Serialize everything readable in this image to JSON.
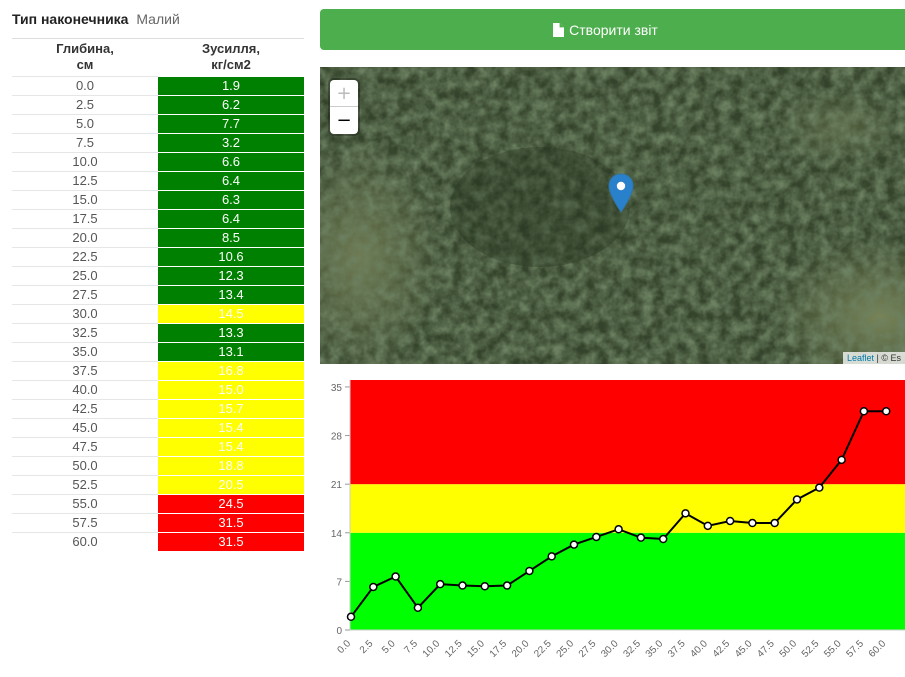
{
  "tip": {
    "label": "Тип наконечника",
    "value": "Малий"
  },
  "table": {
    "headers": {
      "depth": "Глибина,\nсм",
      "force": "Зусилля,\nкг/см2"
    },
    "rows": [
      {
        "depth": "0.0",
        "force": "1.9",
        "level": "green"
      },
      {
        "depth": "2.5",
        "force": "6.2",
        "level": "green"
      },
      {
        "depth": "5.0",
        "force": "7.7",
        "level": "green"
      },
      {
        "depth": "7.5",
        "force": "3.2",
        "level": "green"
      },
      {
        "depth": "10.0",
        "force": "6.6",
        "level": "green"
      },
      {
        "depth": "12.5",
        "force": "6.4",
        "level": "green"
      },
      {
        "depth": "15.0",
        "force": "6.3",
        "level": "green"
      },
      {
        "depth": "17.5",
        "force": "6.4",
        "level": "green"
      },
      {
        "depth": "20.0",
        "force": "8.5",
        "level": "green"
      },
      {
        "depth": "22.5",
        "force": "10.6",
        "level": "green"
      },
      {
        "depth": "25.0",
        "force": "12.3",
        "level": "green"
      },
      {
        "depth": "27.5",
        "force": "13.4",
        "level": "green"
      },
      {
        "depth": "30.0",
        "force": "14.5",
        "level": "yellow"
      },
      {
        "depth": "32.5",
        "force": "13.3",
        "level": "green"
      },
      {
        "depth": "35.0",
        "force": "13.1",
        "level": "green"
      },
      {
        "depth": "37.5",
        "force": "16.8",
        "level": "yellow"
      },
      {
        "depth": "40.0",
        "force": "15.0",
        "level": "yellow"
      },
      {
        "depth": "42.5",
        "force": "15.7",
        "level": "yellow"
      },
      {
        "depth": "45.0",
        "force": "15.4",
        "level": "yellow"
      },
      {
        "depth": "47.5",
        "force": "15.4",
        "level": "yellow"
      },
      {
        "depth": "50.0",
        "force": "18.8",
        "level": "yellow"
      },
      {
        "depth": "52.5",
        "force": "20.5",
        "level": "yellow"
      },
      {
        "depth": "55.0",
        "force": "24.5",
        "level": "red"
      },
      {
        "depth": "57.5",
        "force": "31.5",
        "level": "red"
      },
      {
        "depth": "60.0",
        "force": "31.5",
        "level": "red"
      }
    ]
  },
  "report_button": {
    "label": "Створити звіт",
    "icon": "document-icon"
  },
  "map": {
    "zoom_in": "+",
    "zoom_out": "−",
    "marker_icon": "map-marker-icon",
    "attribution_link": "Leaflet",
    "attribution_rest": " | © Es"
  },
  "colors": {
    "green": "#008000",
    "yellow": "#ffff00",
    "red": "#ff0000",
    "chart_green": "#00ff00",
    "button": "#4cae4c",
    "marker": "#2a81cb"
  },
  "chart_data": {
    "type": "line",
    "x": [
      "0.0",
      "2.5",
      "5.0",
      "7.5",
      "10.0",
      "12.5",
      "15.0",
      "17.5",
      "20.0",
      "22.5",
      "25.0",
      "27.5",
      "30.0",
      "32.5",
      "35.0",
      "37.5",
      "40.0",
      "42.5",
      "45.0",
      "47.5",
      "50.0",
      "52.5",
      "55.0",
      "57.5",
      "60.0"
    ],
    "series": [
      {
        "values": [
          1.9,
          6.2,
          7.7,
          3.2,
          6.6,
          6.4,
          6.3,
          6.4,
          8.5,
          10.6,
          12.3,
          13.4,
          14.5,
          13.3,
          13.1,
          16.8,
          15.0,
          15.7,
          15.4,
          15.4,
          18.8,
          20.5,
          24.5,
          31.5,
          31.5
        ]
      }
    ],
    "yticks": [
      "0",
      "7",
      "14",
      "21",
      "28",
      "35"
    ],
    "ylim": [
      0,
      36
    ],
    "bands": [
      {
        "from": 0,
        "to": 14,
        "color": "#00ff00"
      },
      {
        "from": 14,
        "to": 21,
        "color": "#ffff00"
      },
      {
        "from": 21,
        "to": 36,
        "color": "#ff0000"
      }
    ],
    "grid": false
  }
}
